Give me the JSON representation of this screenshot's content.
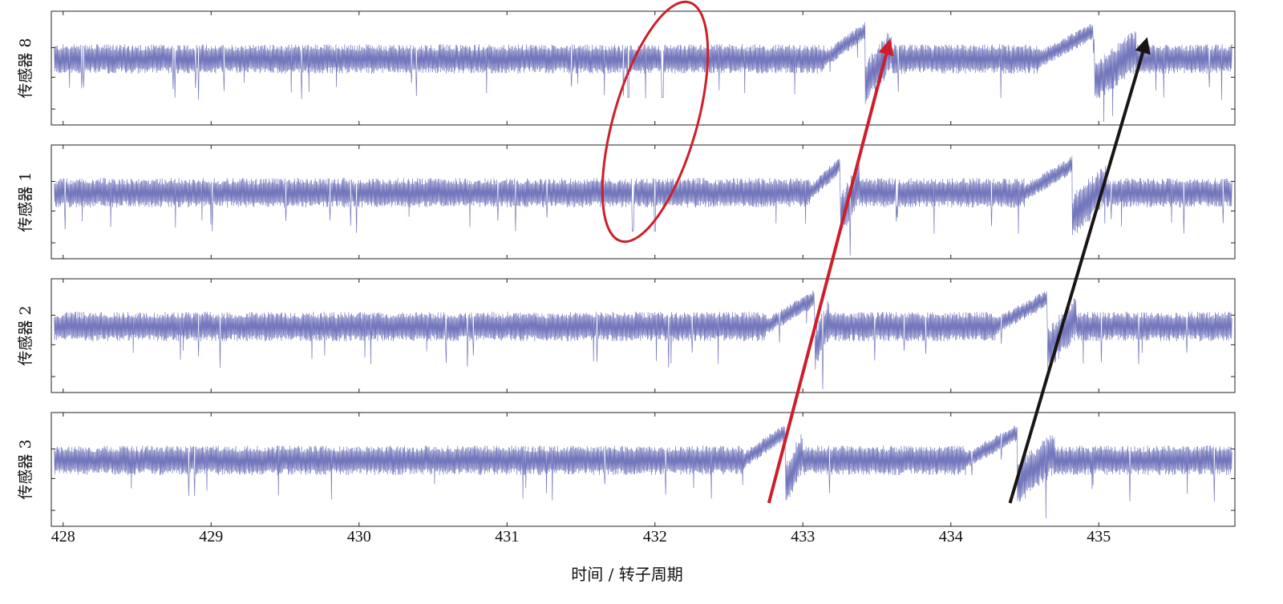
{
  "chart_data": {
    "type": "line",
    "xlabel": "时间 / 转子周期",
    "xlim": [
      427.92,
      435.92
    ],
    "x_ticks": [
      "428",
      "429",
      "430",
      "431",
      "432",
      "433",
      "434",
      "435"
    ],
    "grid": false,
    "series_color": "#5a5fb0",
    "panels": [
      {
        "name": "传感器 8",
        "mean": 0.5,
        "spikes": [
          431.82,
          432.05
        ],
        "surges": [
          {
            "start": 433.15,
            "peak": 433.42,
            "end": 433.6
          },
          {
            "start": 434.6,
            "peak": 434.97,
            "end": 435.25
          }
        ]
      },
      {
        "name": "传感器 1",
        "mean": 0.5,
        "spikes": [
          431.85,
          432.0
        ],
        "surges": [
          {
            "start": 433.05,
            "peak": 433.25,
            "end": 433.38
          },
          {
            "start": 434.5,
            "peak": 434.82,
            "end": 435.05
          }
        ]
      },
      {
        "name": "传感器 2",
        "mean": 0.5,
        "spikes": [],
        "surges": [
          {
            "start": 432.75,
            "peak": 433.08,
            "end": 433.18
          },
          {
            "start": 434.3,
            "peak": 434.65,
            "end": 434.85
          }
        ]
      },
      {
        "name": "传感器 3",
        "mean": 0.5,
        "spikes": [],
        "surges": [
          {
            "start": 432.6,
            "peak": 432.88,
            "end": 433.0
          },
          {
            "start": 434.1,
            "peak": 434.45,
            "end": 434.7
          }
        ]
      }
    ],
    "annotations": [
      {
        "type": "ellipse",
        "color": "#cc1f2b",
        "description": "circled spike events"
      },
      {
        "type": "arrow",
        "color": "#cc1f2b",
        "from_x": 432.77,
        "to_x": 433.62
      },
      {
        "type": "arrow",
        "color": "#1a1414",
        "from_x": 434.4,
        "to_x": 435.28
      }
    ]
  }
}
